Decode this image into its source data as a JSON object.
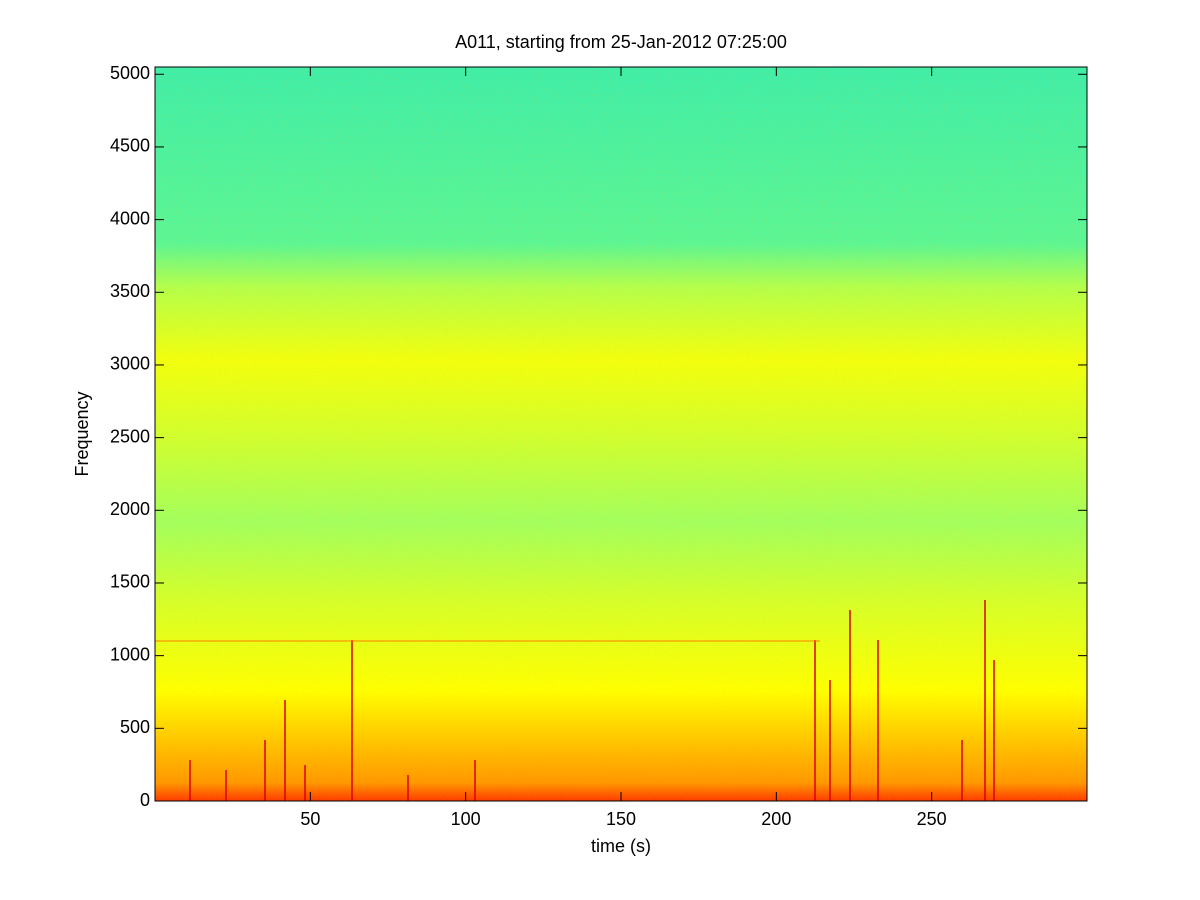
{
  "chart_data": {
    "type": "spectrogram",
    "title": "A011, starting from 25-Jan-2012 07:25:00",
    "x_label": "time (s)",
    "y_label": "Frequency",
    "xlim": [
      0,
      300
    ],
    "xticks": [
      50,
      100,
      150,
      200,
      250
    ],
    "ylim": [
      0,
      5050
    ],
    "yticks": [
      0,
      500,
      1000,
      1500,
      2000,
      2500,
      3000,
      3500,
      4000,
      4500,
      5000
    ]
  }
}
